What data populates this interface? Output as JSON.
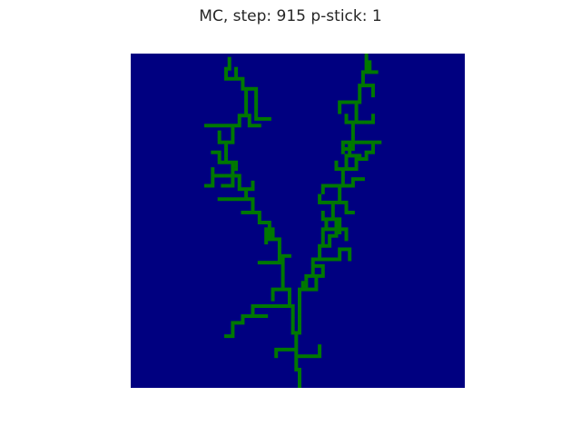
{
  "chart_data": {
    "type": "heatmap",
    "title": "MC, step: 915 p-stick: 1",
    "xlabel": "",
    "ylabel": "",
    "grid": false,
    "legend": "none",
    "grid_size": [
      100,
      100
    ],
    "colors": {
      "empty": "#000080",
      "aggregate": "#007800"
    },
    "seed_cell": [
      50,
      99
    ],
    "aggregate_paths": [
      [
        [
          50,
          99
        ],
        [
          50,
          94
        ],
        [
          49,
          94
        ],
        [
          49,
          88
        ],
        [
          49,
          83
        ],
        [
          50,
          83
        ],
        [
          50,
          70
        ],
        [
          51,
          70
        ],
        [
          51,
          68
        ]
      ],
      [
        [
          49,
          88
        ],
        [
          45,
          88
        ],
        [
          43,
          88
        ],
        [
          43,
          90
        ]
      ],
      [
        [
          50,
          90
        ],
        [
          54,
          90
        ],
        [
          56,
          90
        ],
        [
          56,
          87
        ]
      ],
      [
        [
          49,
          83
        ],
        [
          48,
          83
        ],
        [
          48,
          75
        ],
        [
          47,
          75
        ],
        [
          47,
          70
        ],
        [
          45,
          70
        ],
        [
          45,
          62
        ],
        [
          44,
          62
        ],
        [
          44,
          55
        ],
        [
          42,
          55
        ],
        [
          42,
          52
        ]
      ],
      [
        [
          44,
          55
        ],
        [
          41,
          55
        ],
        [
          41,
          50
        ],
        [
          38,
          50
        ],
        [
          38,
          47
        ],
        [
          36,
          47
        ],
        [
          36,
          43
        ],
        [
          34,
          43
        ],
        [
          34,
          40
        ],
        [
          32,
          40
        ],
        [
          32,
          36
        ],
        [
          30,
          36
        ],
        [
          30,
          32
        ],
        [
          28,
          32
        ],
        [
          28,
          26
        ],
        [
          30,
          26
        ],
        [
          30,
          21
        ],
        [
          32,
          21
        ],
        [
          32,
          18
        ],
        [
          34,
          18
        ],
        [
          34,
          10
        ],
        [
          33,
          10
        ],
        [
          33,
          7
        ],
        [
          31,
          7
        ],
        [
          31,
          4
        ]
      ],
      [
        [
          34,
          18
        ],
        [
          35,
          18
        ],
        [
          35,
          21
        ],
        [
          38,
          21
        ]
      ],
      [
        [
          32,
          21
        ],
        [
          28,
          21
        ],
        [
          22,
          21
        ]
      ],
      [
        [
          30,
          26
        ],
        [
          28,
          26
        ]
      ],
      [
        [
          34,
          10
        ],
        [
          37,
          10
        ],
        [
          37,
          19
        ],
        [
          41,
          19
        ]
      ],
      [
        [
          31,
          7
        ],
        [
          28,
          7
        ],
        [
          28,
          4
        ],
        [
          29,
          4
        ],
        [
          29,
          1
        ]
      ],
      [
        [
          32,
          36
        ],
        [
          28,
          36
        ],
        [
          24,
          36
        ],
        [
          24,
          34
        ]
      ],
      [
        [
          28,
          32
        ],
        [
          26,
          32
        ],
        [
          26,
          29
        ],
        [
          24,
          29
        ]
      ],
      [
        [
          36,
          43
        ],
        [
          33,
          43
        ],
        [
          30,
          43
        ],
        [
          28,
          43
        ],
        [
          26,
          43
        ]
      ],
      [
        [
          38,
          47
        ],
        [
          35,
          47
        ],
        [
          33,
          47
        ]
      ],
      [
        [
          41,
          50
        ],
        [
          38,
          50
        ]
      ],
      [
        [
          42,
          52
        ],
        [
          40,
          52
        ],
        [
          40,
          56
        ]
      ],
      [
        [
          45,
          62
        ],
        [
          43,
          62
        ],
        [
          40,
          62
        ],
        [
          38,
          62
        ]
      ],
      [
        [
          47,
          70
        ],
        [
          44,
          70
        ],
        [
          42,
          70
        ],
        [
          42,
          73
        ]
      ],
      [
        [
          48,
          75
        ],
        [
          44,
          75
        ],
        [
          40,
          75
        ],
        [
          38,
          75
        ]
      ],
      [
        [
          38,
          75
        ],
        [
          36,
          75
        ],
        [
          36,
          78
        ],
        [
          33,
          78
        ],
        [
          33,
          80
        ],
        [
          30,
          80
        ],
        [
          30,
          84
        ],
        [
          28,
          84
        ]
      ],
      [
        [
          36,
          78
        ],
        [
          40,
          78
        ]
      ],
      [
        [
          45,
          62
        ],
        [
          45,
          60
        ],
        [
          47,
          60
        ]
      ],
      [
        [
          30,
          32
        ],
        [
          31,
          32
        ],
        [
          31,
          34
        ]
      ],
      [
        [
          34,
          40
        ],
        [
          36,
          40
        ],
        [
          36,
          38
        ]
      ],
      [
        [
          28,
          26
        ],
        [
          26,
          26
        ],
        [
          26,
          23
        ]
      ],
      [
        [
          30,
          36
        ],
        [
          30,
          39
        ],
        [
          27,
          39
        ]
      ],
      [
        [
          24,
          36
        ],
        [
          24,
          39
        ],
        [
          22,
          39
        ]
      ],
      [
        [
          51,
          70
        ],
        [
          52,
          70
        ],
        [
          52,
          66
        ],
        [
          54,
          66
        ],
        [
          54,
          61
        ],
        [
          56,
          61
        ],
        [
          56,
          57
        ],
        [
          57,
          57
        ],
        [
          57,
          52
        ],
        [
          58,
          52
        ],
        [
          58,
          49
        ],
        [
          60,
          49
        ],
        [
          60,
          44
        ],
        [
          62,
          44
        ],
        [
          62,
          39
        ],
        [
          63,
          39
        ],
        [
          63,
          34
        ],
        [
          64,
          34
        ],
        [
          64,
          30
        ],
        [
          65,
          30
        ],
        [
          65,
          26
        ],
        [
          66,
          26
        ],
        [
          66,
          20
        ],
        [
          67,
          20
        ],
        [
          67,
          14
        ],
        [
          68,
          14
        ],
        [
          68,
          9
        ],
        [
          69,
          9
        ],
        [
          69,
          5
        ],
        [
          70,
          5
        ],
        [
          70,
          0
        ]
      ],
      [
        [
          66,
          26
        ],
        [
          70,
          26
        ],
        [
          74,
          26
        ]
      ],
      [
        [
          65,
          30
        ],
        [
          68,
          30
        ]
      ],
      [
        [
          64,
          34
        ],
        [
          67,
          34
        ],
        [
          67,
          31
        ],
        [
          70,
          31
        ],
        [
          70,
          29
        ],
        [
          72,
          29
        ],
        [
          72,
          26
        ]
      ],
      [
        [
          63,
          39
        ],
        [
          66,
          39
        ],
        [
          66,
          37
        ],
        [
          69,
          37
        ]
      ],
      [
        [
          62,
          44
        ],
        [
          64,
          44
        ],
        [
          64,
          47
        ],
        [
          66,
          47
        ]
      ],
      [
        [
          60,
          49
        ],
        [
          62,
          49
        ],
        [
          62,
          53
        ]
      ],
      [
        [
          58,
          52
        ],
        [
          61,
          52
        ]
      ],
      [
        [
          57,
          57
        ],
        [
          59,
          57
        ],
        [
          59,
          54
        ],
        [
          61,
          54
        ],
        [
          61,
          50
        ]
      ],
      [
        [
          56,
          61
        ],
        [
          60,
          61
        ],
        [
          62,
          61
        ],
        [
          62,
          58
        ],
        [
          65,
          58
        ]
      ],
      [
        [
          54,
          66
        ],
        [
          57,
          66
        ],
        [
          57,
          63
        ]
      ],
      [
        [
          52,
          70
        ],
        [
          55,
          70
        ],
        [
          55,
          67
        ]
      ],
      [
        [
          65,
          26
        ],
        [
          63,
          26
        ],
        [
          63,
          29
        ]
      ],
      [
        [
          66,
          20
        ],
        [
          64,
          20
        ],
        [
          64,
          18
        ]
      ],
      [
        [
          67,
          14
        ],
        [
          64,
          14
        ],
        [
          62,
          14
        ],
        [
          62,
          17
        ]
      ],
      [
        [
          68,
          9
        ],
        [
          70,
          9
        ],
        [
          72,
          9
        ],
        [
          72,
          12
        ]
      ],
      [
        [
          69,
          5
        ],
        [
          71,
          5
        ],
        [
          71,
          2
        ]
      ],
      [
        [
          70,
          5
        ],
        [
          73,
          5
        ]
      ],
      [
        [
          62,
          44
        ],
        [
          59,
          44
        ],
        [
          56,
          44
        ],
        [
          56,
          42
        ]
      ],
      [
        [
          60,
          49
        ],
        [
          57,
          49
        ],
        [
          57,
          47
        ]
      ],
      [
        [
          64,
          34
        ],
        [
          61,
          34
        ],
        [
          61,
          32
        ]
      ],
      [
        [
          63,
          39
        ],
        [
          60,
          39
        ],
        [
          57,
          39
        ],
        [
          57,
          41
        ]
      ],
      [
        [
          67,
          20
        ],
        [
          70,
          20
        ],
        [
          72,
          20
        ],
        [
          72,
          18
        ]
      ],
      [
        [
          66,
          26
        ],
        [
          66,
          28
        ],
        [
          64,
          28
        ]
      ],
      [
        [
          61,
          52
        ],
        [
          64,
          52
        ],
        [
          64,
          55
        ]
      ],
      [
        [
          65,
          58
        ],
        [
          65,
          61
        ]
      ],
      [
        [
          57,
          63
        ],
        [
          55,
          63
        ]
      ]
    ]
  }
}
